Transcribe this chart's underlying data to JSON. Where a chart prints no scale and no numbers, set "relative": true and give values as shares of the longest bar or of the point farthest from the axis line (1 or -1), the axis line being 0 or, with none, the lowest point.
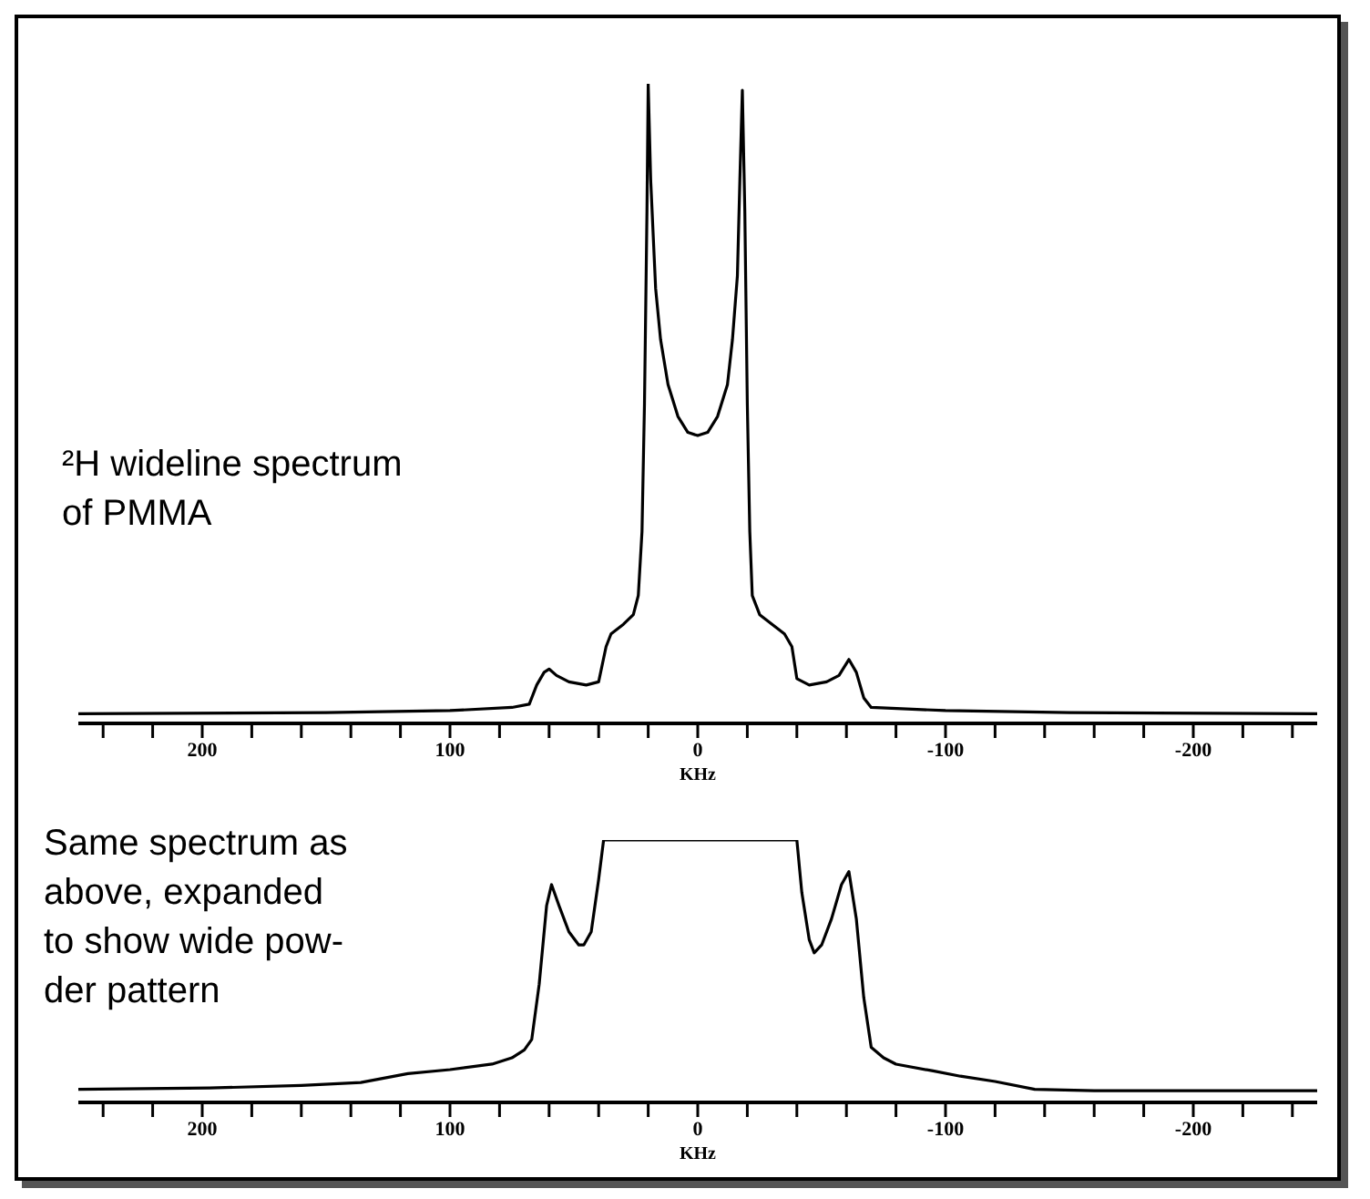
{
  "chart_data": [
    {
      "type": "line",
      "relative": true,
      "tick_labels": "x",
      "xlabel": "KHz",
      "annotations": [
        "²H wideline spectrum\nof PMMA"
      ],
      "xlim": [
        250,
        -250
      ],
      "xticks": [
        {
          "value": 240,
          "label": null
        },
        {
          "value": 220,
          "label": null
        },
        200,
        {
          "value": 180,
          "label": null
        },
        {
          "value": 160,
          "label": null
        },
        {
          "value": 140,
          "label": null
        },
        {
          "value": 120,
          "label": null
        },
        100,
        {
          "value": 80,
          "label": null
        },
        {
          "value": 60,
          "label": null
        },
        {
          "value": 40,
          "label": null
        },
        {
          "value": 20,
          "label": null
        },
        0,
        {
          "value": -20,
          "label": null
        },
        {
          "value": -40,
          "label": null
        },
        {
          "value": -60,
          "label": null
        },
        {
          "value": -80,
          "label": null
        },
        -100,
        {
          "value": -120,
          "label": null
        },
        {
          "value": -140,
          "label": null
        },
        {
          "value": -160,
          "label": null
        },
        {
          "value": -180,
          "label": null
        },
        -200,
        {
          "value": -220,
          "label": null
        },
        {
          "value": -240,
          "label": null
        }
      ],
      "series": [
        {
          "color": "#000000",
          "x": [
            250,
            150,
            100,
            75,
            68,
            65,
            62,
            60,
            57,
            52,
            45,
            40,
            37,
            35,
            30,
            26,
            24,
            22.5,
            21.5,
            20.5,
            20,
            19,
            17,
            15,
            12,
            8,
            4,
            0,
            -4,
            -8,
            -12,
            -14,
            -16,
            -17,
            -18,
            -19,
            -20,
            -21,
            -22,
            -25,
            -30,
            -35,
            -38,
            -40,
            -45,
            -52,
            -57,
            -61,
            -64,
            -67,
            -70,
            -100,
            -150,
            -250
          ],
          "values": [
            0.015,
            0.017,
            0.02,
            0.025,
            0.03,
            0.06,
            0.08,
            0.085,
            0.075,
            0.065,
            0.06,
            0.065,
            0.12,
            0.14,
            0.155,
            0.17,
            0.2,
            0.3,
            0.5,
            0.8,
            1.0,
            0.85,
            0.68,
            0.6,
            0.53,
            0.48,
            0.455,
            0.45,
            0.455,
            0.48,
            0.53,
            0.6,
            0.7,
            0.85,
            0.99,
            0.8,
            0.5,
            0.3,
            0.2,
            0.17,
            0.155,
            0.14,
            0.12,
            0.07,
            0.06,
            0.065,
            0.075,
            0.1,
            0.08,
            0.04,
            0.025,
            0.02,
            0.017,
            0.015
          ]
        }
      ]
    },
    {
      "type": "line",
      "relative": true,
      "tick_labels": "x",
      "xlabel": "KHz",
      "annotations": [
        "Same spectrum as\nabove, expanded\nto show wide pow-\nder pattern"
      ],
      "xlim": [
        250,
        -250
      ],
      "xticks": [
        {
          "value": 240,
          "label": null
        },
        {
          "value": 220,
          "label": null
        },
        200,
        {
          "value": 180,
          "label": null
        },
        {
          "value": 160,
          "label": null
        },
        {
          "value": 140,
          "label": null
        },
        {
          "value": 120,
          "label": null
        },
        100,
        {
          "value": 80,
          "label": null
        },
        {
          "value": 60,
          "label": null
        },
        {
          "value": 40,
          "label": null
        },
        {
          "value": 20,
          "label": null
        },
        0,
        {
          "value": -20,
          "label": null
        },
        {
          "value": -40,
          "label": null
        },
        {
          "value": -60,
          "label": null
        },
        {
          "value": -80,
          "label": null
        },
        -100,
        {
          "value": -120,
          "label": null
        },
        {
          "value": -140,
          "label": null
        },
        {
          "value": -160,
          "label": null
        },
        {
          "value": -180,
          "label": null
        },
        -200,
        {
          "value": -220,
          "label": null
        },
        {
          "value": -240,
          "label": null
        }
      ],
      "series": [
        {
          "color": "#000000",
          "x": [
            250,
            197,
            160,
            136,
            117,
            100,
            83,
            75,
            70,
            67,
            64,
            61,
            59,
            56,
            52,
            48,
            46,
            43,
            40,
            38,
            0,
            -40,
            -42,
            -45,
            -47,
            -50,
            -54,
            -58,
            -61,
            -64,
            -67,
            -70,
            -75,
            -80,
            -95,
            -106,
            -120,
            -136,
            -160,
            -200,
            -250
          ],
          "values": [
            0.05,
            0.055,
            0.065,
            0.076,
            0.11,
            0.125,
            0.146,
            0.17,
            0.2,
            0.24,
            0.45,
            0.75,
            0.83,
            0.75,
            0.65,
            0.6,
            0.6,
            0.65,
            0.85,
            1.0,
            1.0,
            1.0,
            0.8,
            0.62,
            0.57,
            0.6,
            0.7,
            0.83,
            0.88,
            0.7,
            0.4,
            0.21,
            0.17,
            0.146,
            0.12,
            0.1,
            0.08,
            0.05,
            0.045,
            0.045,
            0.045
          ]
        }
      ]
    }
  ]
}
